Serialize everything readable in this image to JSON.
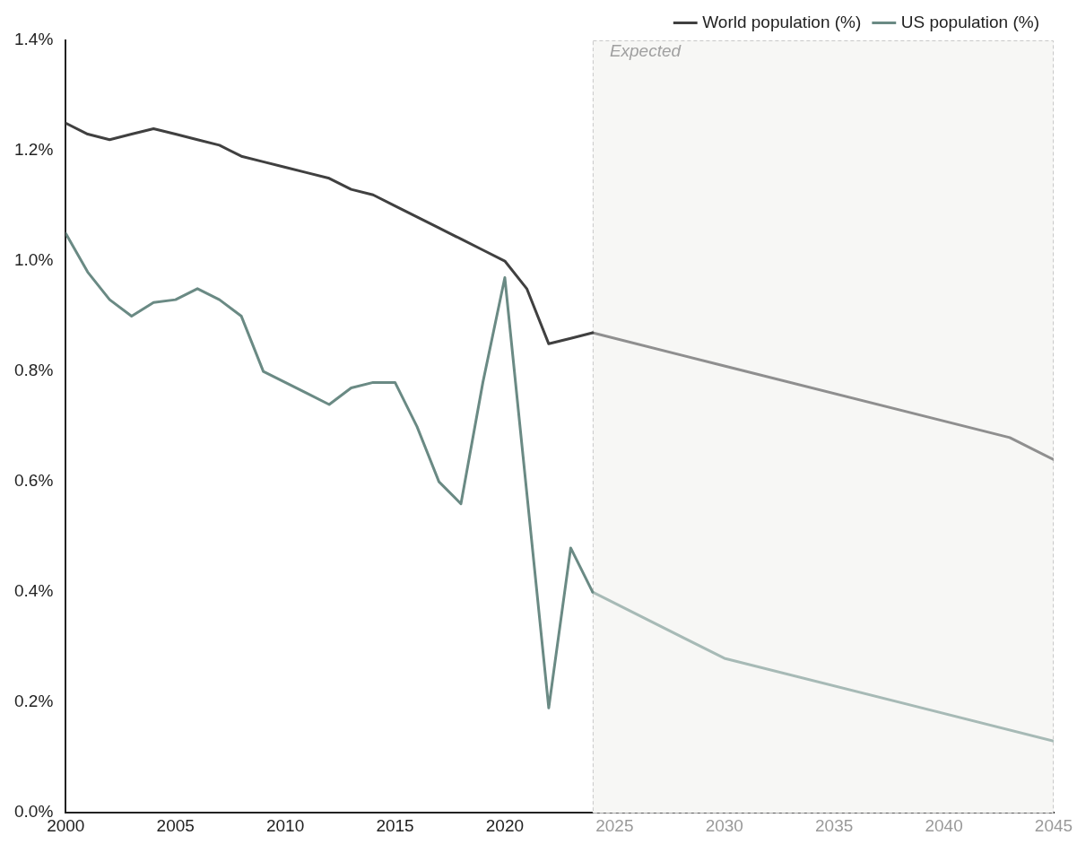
{
  "chart_data": {
    "type": "line",
    "xlim": [
      2000,
      2045
    ],
    "xticks": [
      2000,
      2005,
      2010,
      2015,
      2020,
      2025,
      2030,
      2035,
      2040,
      2045
    ],
    "ylim": [
      0,
      1.4
    ],
    "yticks": [
      {
        "value": 0,
        "label": "0.0%"
      },
      {
        "value": 0.2,
        "label": "0.2%"
      },
      {
        "value": 0.4,
        "label": "0.4%"
      },
      {
        "value": 0.6,
        "label": "0.6%"
      },
      {
        "value": 0.8,
        "label": "0.8%"
      },
      {
        "value": 1.0,
        "label": "1.0%"
      },
      {
        "value": 1.2,
        "label": "1.2%"
      },
      {
        "value": 1.4,
        "label": "1.4%"
      }
    ],
    "grid": false,
    "legend": "top right",
    "marker": "none",
    "line_style": "solid",
    "series": [
      {
        "name": "World population (%)",
        "color": "#404040",
        "x": [
          2000,
          2001,
          2002,
          2003,
          2004,
          2005,
          2006,
          2007,
          2008,
          2009,
          2010,
          2011,
          2012,
          2013,
          2014,
          2015,
          2016,
          2017,
          2018,
          2019,
          2020,
          2021,
          2022,
          2023,
          2024
        ],
        "values": [
          1.25,
          1.23,
          1.22,
          1.23,
          1.24,
          1.23,
          1.22,
          1.21,
          1.19,
          1.18,
          1.17,
          1.16,
          1.15,
          1.13,
          1.12,
          1.1,
          1.08,
          1.06,
          1.04,
          1.02,
          1.0,
          0.95,
          0.85,
          0.86,
          0.87
        ]
      },
      {
        "name": "US population (%)",
        "color": "#6a8a84",
        "x": [
          2000,
          2001,
          2002,
          2003,
          2004,
          2005,
          2006,
          2007,
          2008,
          2009,
          2010,
          2011,
          2012,
          2013,
          2014,
          2015,
          2016,
          2017,
          2018,
          2019,
          2020,
          2021,
          2022,
          2023,
          2024
        ],
        "values": [
          1.05,
          0.98,
          0.93,
          0.9,
          0.925,
          0.93,
          0.95,
          0.93,
          0.9,
          0.8,
          0.78,
          0.76,
          0.74,
          0.77,
          0.78,
          0.78,
          0.7,
          0.6,
          0.56,
          0.78,
          0.97,
          0.58,
          0.19,
          0.48,
          0.4
        ]
      },
      {
        "color": "#8f8f8f",
        "x": [
          2024,
          2030,
          2043,
          2045
        ],
        "values": [
          0.87,
          0.81,
          0.68,
          0.64
        ]
      },
      {
        "color": "#a7bab6",
        "x": [
          2024,
          2030,
          2045
        ],
        "values": [
          0.4,
          0.28,
          0.13
        ]
      }
    ],
    "bands": [
      {
        "axis": "x",
        "from": 2024,
        "to": 2045,
        "label": "Expected",
        "color": "#f7f7f5"
      }
    ]
  }
}
